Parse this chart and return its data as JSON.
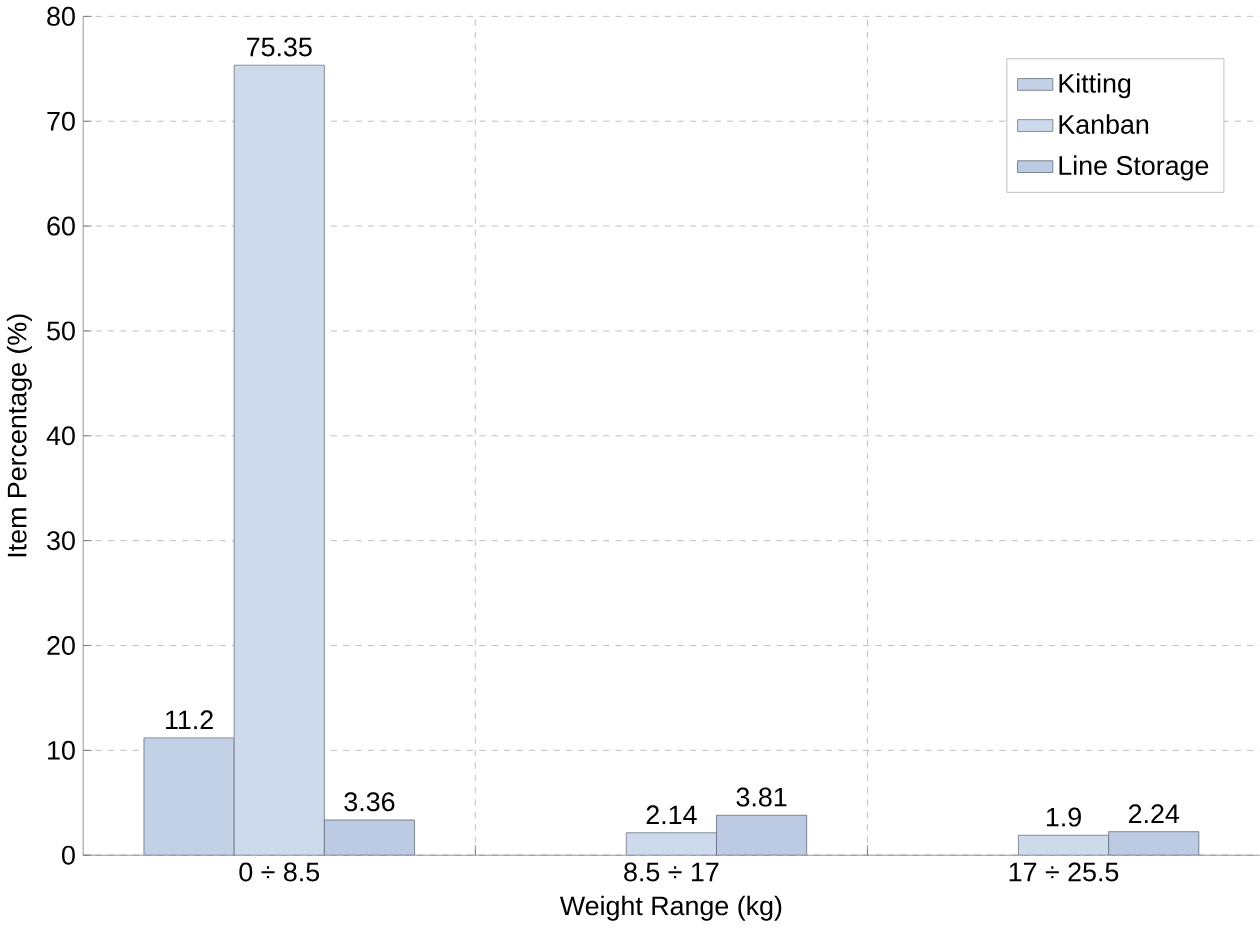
{
  "chart_data": {
    "type": "bar",
    "xlabel": "Weight Range (kg)",
    "ylabel": "Item Percentage (%)",
    "categories": [
      "0 ÷ 8.5",
      "8.5 ÷ 17",
      "17 ÷ 25.5"
    ],
    "series": [
      {
        "name": "Kitting",
        "color": "#c3d1e6",
        "values": [
          11.2,
          null,
          null
        ]
      },
      {
        "name": "Kanban",
        "color": "#cddaec",
        "values": [
          75.35,
          2.14,
          1.9
        ]
      },
      {
        "name": "Line Storage",
        "color": "#bccbe3",
        "values": [
          3.36,
          3.81,
          2.24
        ]
      }
    ],
    "ylim": [
      0,
      80
    ],
    "yticks": [
      0,
      10,
      20,
      30,
      40,
      50,
      60,
      70,
      80
    ],
    "grid": true,
    "legend": "top right",
    "data_labels": true
  }
}
